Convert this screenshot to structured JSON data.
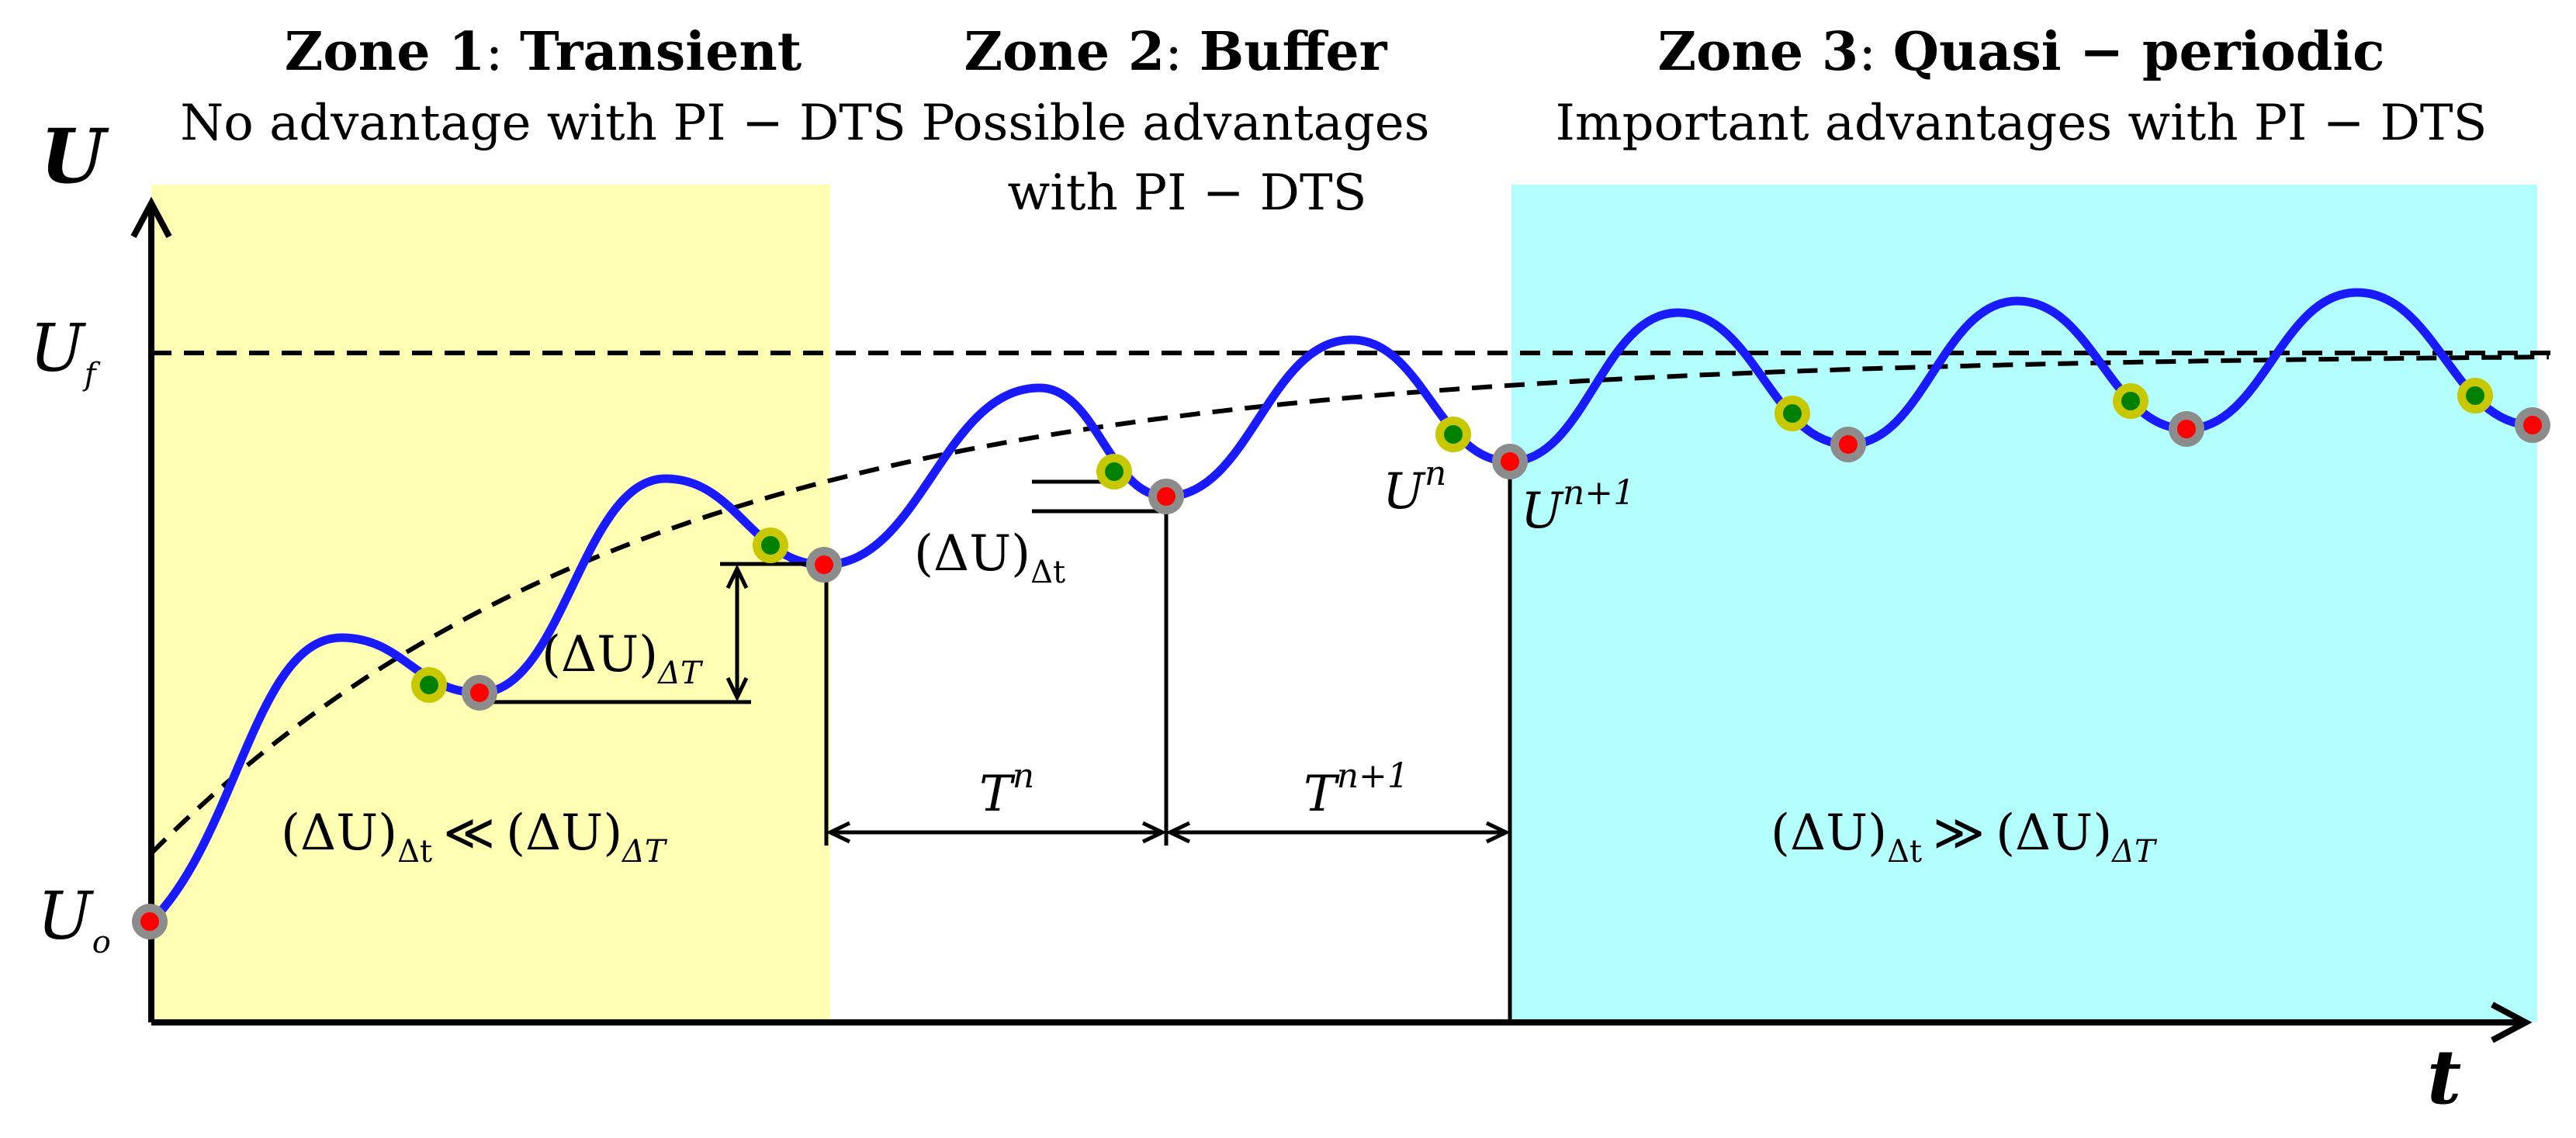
{
  "zones": [
    {
      "id": "zone1",
      "name": "Zone 1",
      "title": "Transient",
      "desc": [
        "No advantage with PI − DTS"
      ],
      "color": "#ffffb3"
    },
    {
      "id": "zone2",
      "name": "Zone 2",
      "title": "Buffer",
      "desc": [
        "Possible advantages",
        "with PI − DTS"
      ],
      "color": "#ffffff"
    },
    {
      "id": "zone3",
      "name": "Zone 3",
      "title": "Quasi − periodic",
      "desc": [
        "Important advantages with PI − DTS"
      ],
      "color": "#b3ffff"
    }
  ],
  "axes": {
    "y_label": "U",
    "x_label": "t",
    "uf_label": "U",
    "uf_sub": "f",
    "uo_label": "U",
    "uo_sub": "o"
  },
  "labels": {
    "du_dT": {
      "base": "(ΔU)",
      "sub": "ΔT"
    },
    "du_dt": {
      "base": "(ΔU)",
      "sub": "Δt"
    },
    "ineq1": {
      "a": "(ΔU)",
      "a_sub": "Δt",
      "rel": "≪",
      "b": "(ΔU)",
      "b_sub": "ΔT"
    },
    "ineq3": {
      "a": "(ΔU)",
      "a_sub": "Δt",
      "rel": "≫",
      "b": "(ΔU)",
      "b_sub": "ΔT"
    },
    "Tn": {
      "base": "T",
      "sup": "n"
    },
    "Tn1": {
      "base": "T",
      "sup": "n+1"
    },
    "Un": {
      "base": "U",
      "sup": "n"
    },
    "Un1": {
      "base": "U",
      "sup": "n+1"
    }
  },
  "colors": {
    "curve": "#1a1aff",
    "dot_green": "#008000",
    "ring_yellow": "#c8c800",
    "dot_red": "#ff0000",
    "ring_grey": "#8c8c8c"
  }
}
